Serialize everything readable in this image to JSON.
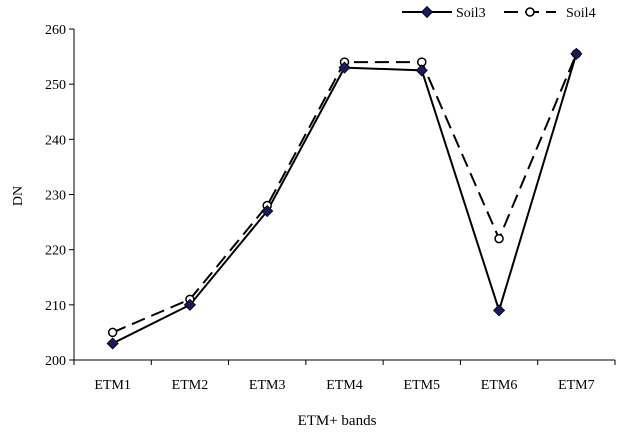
{
  "chart_data": {
    "type": "line",
    "title": "",
    "xlabel": "ETM+ bands",
    "ylabel": "DN",
    "categories": [
      "ETM1",
      "ETM2",
      "ETM3",
      "ETM4",
      "ETM5",
      "ETM6",
      "ETM7"
    ],
    "ylim": [
      200,
      260
    ],
    "yticks": [
      "200",
      "210",
      "220",
      "230",
      "240",
      "250",
      "260"
    ],
    "grid": false,
    "legend_position": "top-right",
    "series": [
      {
        "name": "Soil3",
        "values": [
          203,
          210,
          227,
          253,
          252.5,
          209,
          255.5
        ],
        "color": "#000000",
        "line_style": "solid",
        "marker": "diamond",
        "marker_color": "#1a1a5e"
      },
      {
        "name": "Soil4",
        "values": [
          205,
          211,
          228,
          254,
          254,
          222,
          255.5
        ],
        "color": "#000000",
        "line_style": "dashed",
        "marker": "open-circle",
        "marker_color": "#ffffff"
      }
    ]
  }
}
